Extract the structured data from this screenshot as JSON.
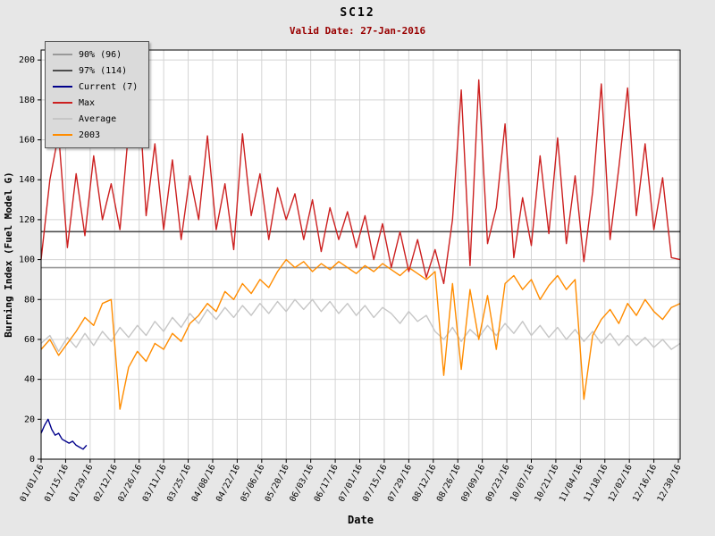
{
  "header": {
    "title": "SC12",
    "subtitle": "Valid Date: 27-Jan-2016"
  },
  "colors": {
    "page_bg": "#e7e7e7",
    "plot_bg": "#ffffff",
    "grid": "#d4d4d4",
    "axis": "#000000",
    "subtitle": "#990000",
    "legend_bg": "#dadada"
  },
  "chart_data": {
    "type": "line",
    "title": "SC12",
    "subtitle": "Valid Date: 27-Jan-2016",
    "xlabel": "Date",
    "ylabel": "Burning Index (Fuel Model G)",
    "ylim": [
      0,
      205
    ],
    "xlim": [
      0,
      365
    ],
    "grid": true,
    "legend_position": "top-left",
    "yticks": [
      0,
      20,
      40,
      60,
      80,
      100,
      120,
      140,
      160,
      180,
      200
    ],
    "x_tick_days": [
      0,
      14,
      28,
      42,
      56,
      70,
      84,
      98,
      112,
      126,
      140,
      154,
      168,
      182,
      196,
      210,
      224,
      238,
      252,
      266,
      280,
      294,
      308,
      322,
      336,
      350,
      364
    ],
    "x_tick_labels": [
      "01/01/16",
      "01/15/16",
      "01/29/16",
      "02/12/16",
      "02/26/16",
      "03/11/16",
      "03/25/16",
      "04/08/16",
      "04/22/16",
      "05/06/16",
      "05/20/16",
      "06/03/16",
      "06/17/16",
      "07/01/16",
      "07/15/16",
      "07/29/16",
      "08/12/16",
      "08/26/16",
      "09/09/16",
      "09/23/16",
      "10/07/16",
      "10/21/16",
      "11/04/16",
      "11/18/16",
      "12/02/16",
      "12/16/16",
      "12/30/16"
    ],
    "reference_lines": [
      {
        "name": "90% (96)",
        "value": 96,
        "color": "#999999"
      },
      {
        "name": "97% (114)",
        "value": 114,
        "color": "#4d4d4d"
      }
    ],
    "series": [
      {
        "name": "Average",
        "color": "#c6c6c6",
        "x_start": 0,
        "x_step": 5,
        "values": [
          58,
          62,
          54,
          61,
          56,
          63,
          57,
          64,
          59,
          66,
          61,
          67,
          62,
          69,
          64,
          71,
          66,
          73,
          68,
          75,
          70,
          76,
          71,
          77,
          72,
          78,
          73,
          79,
          74,
          80,
          75,
          80,
          74,
          79,
          73,
          78,
          72,
          77,
          71,
          76,
          73,
          68,
          74,
          69,
          72,
          64,
          60,
          66,
          59,
          65,
          61,
          67,
          62,
          68,
          63,
          69,
          62,
          67,
          61,
          66,
          60,
          65,
          59,
          64,
          58,
          63,
          57,
          62,
          57,
          61,
          56,
          60,
          55,
          58
        ]
      },
      {
        "name": "2003",
        "color": "#ff8c00",
        "x_start": 0,
        "x_step": 5,
        "values": [
          55,
          60,
          52,
          58,
          64,
          71,
          67,
          78,
          80,
          25,
          46,
          54,
          49,
          58,
          55,
          63,
          59,
          68,
          72,
          78,
          74,
          84,
          80,
          88,
          83,
          90,
          86,
          94,
          100,
          96,
          99,
          94,
          98,
          95,
          99,
          96,
          93,
          97,
          94,
          98,
          95,
          92,
          96,
          93,
          90,
          94,
          42,
          88,
          45,
          85,
          60,
          82,
          55,
          88,
          92,
          85,
          90,
          80,
          87,
          92,
          85,
          90,
          30,
          62,
          70,
          75,
          68,
          78,
          72,
          80,
          74,
          70,
          76,
          78
        ]
      },
      {
        "name": "Max",
        "color": "#cc2020",
        "x_start": 0,
        "x_step": 5,
        "values": [
          100,
          140,
          163,
          106,
          143,
          112,
          152,
          120,
          138,
          115,
          165,
          198,
          122,
          158,
          115,
          150,
          110,
          142,
          120,
          162,
          115,
          138,
          105,
          163,
          122,
          143,
          110,
          136,
          120,
          133,
          110,
          130,
          104,
          126,
          110,
          124,
          106,
          122,
          100,
          118,
          96,
          114,
          94,
          110,
          91,
          105,
          88,
          120,
          185,
          97,
          190,
          108,
          126,
          168,
          101,
          131,
          107,
          152,
          113,
          161,
          108,
          142,
          99,
          134,
          188,
          110,
          146,
          186,
          122,
          158,
          115,
          141,
          101,
          100
        ]
      },
      {
        "name": "Current (7)",
        "color": "#00008b",
        "x_start": 0,
        "x_step": 2,
        "values": [
          13,
          17,
          20,
          15,
          12,
          13,
          10,
          9,
          8,
          9,
          7,
          6,
          5,
          7
        ]
      }
    ],
    "legend": [
      {
        "label": "90% (96)",
        "color": "#999999"
      },
      {
        "label": "97% (114)",
        "color": "#4d4d4d"
      },
      {
        "label": "Current (7)",
        "color": "#00008b"
      },
      {
        "label": "Max",
        "color": "#cc2020"
      },
      {
        "label": "Average",
        "color": "#c6c6c6"
      },
      {
        "label": "2003",
        "color": "#ff8c00"
      }
    ]
  }
}
